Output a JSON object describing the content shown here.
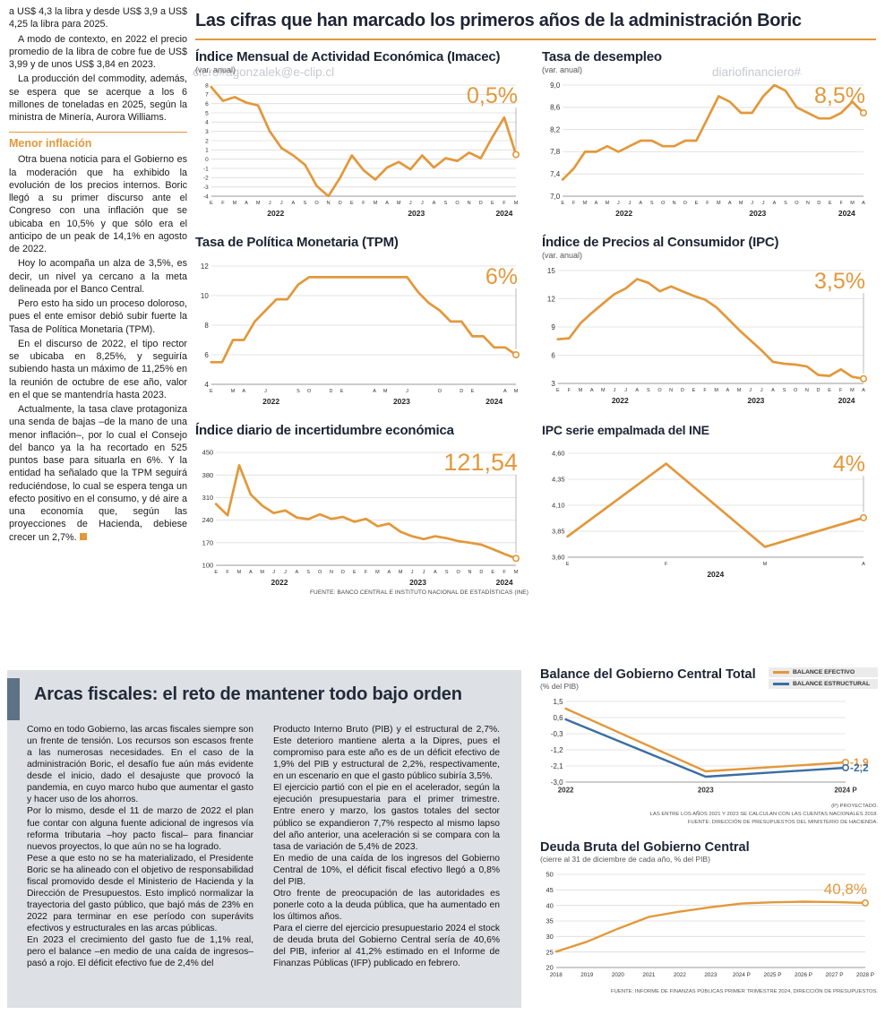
{
  "palette": {
    "orange": "#E2983B",
    "blue": "#3A6EA3",
    "heading": "#1D2433",
    "panel_bg": "#DDE1E5",
    "slate": "#5E7285"
  },
  "watermark": "diariofinanciero#agonzalek@e-clip.cl",
  "main_title": "Las cifras que han marcado los primeros años de la administración Boric",
  "sources": {
    "top": "FUENTE: BANCO CENTRAL E INSTITUTO NACIONAL DE ESTADÍSTICAS (INE)"
  },
  "left_column": {
    "paragraphs": [
      "a US$ 4,3 la libra y desde US$ 3,9 a US$ 4,25 la libra para 2025.",
      "A modo de contexto, en 2022 el precio promedio de la libra de cobre fue de US$ 3,99 y de unos US$ 3,84 en 2023.",
      "La producción del commodity, además, se espera que se acerque a los 6 millones de toneladas en 2025, según la ministra de Minería, Aurora Williams."
    ],
    "subhead": "Menor inflación",
    "inflation_paragraphs": [
      "Otra buena noticia para el Gobierno es la moderación que ha exhibido la evolución de los precios internos. Boric llegó a su primer discurso ante el Congreso con una inflación que se ubicaba en 10,5% y que sólo era el anticipo de un peak de 14,1% en agosto de 2022.",
      "Hoy lo acompaña un alza de 3,5%, es decir, un nivel ya cercano a la meta delineada por el Banco Central.",
      "Pero esto ha sido un proceso doloroso, pues el ente emisor debió subir fuerte la Tasa de Política Monetaria (TPM).",
      "En el discurso de 2022, el tipo rector se ubicaba en 8,25%, y seguiría subiendo hasta un máximo de 11,25% en la reunión de octubre de ese año, valor en el que se mantendría hasta 2023.",
      "Actualmente, la tasa clave protagoniza una senda de bajas –de la mano de una menor inflación–, por lo cual el Consejo del banco ya la ha recortado en 525 puntos base para situarla en 6%. Y la entidad ha señalado que la TPM seguirá reduciéndose, lo cual se espera tenga un efecto positivo en el consumo, y dé aire a una economía que, según las proyecciones de Hacienda, debiese crecer un 2,7%."
    ]
  },
  "bottom_section": {
    "title": "Arcas fiscales: el reto de mantener todo bajo orden",
    "col1": [
      "Como en todo Gobierno, las arcas fiscales siempre son un frente de tensión. Los recursos son escasos frente a las numerosas necesidades. En el caso de la administración Boric, el desafío fue aún más evidente desde el inicio, dado el desajuste que provocó la pandemia, en cuyo marco hubo que aumentar el gasto y hacer uso de los ahorros.",
      "Por lo mismo, desde el 11 de marzo de 2022 el plan fue contar con alguna fuente adicional de ingresos vía reforma tributaria –hoy pacto fiscal– para financiar nuevos proyectos, lo que aún no se ha logrado.",
      "Pese a que esto no se ha materializado, el Presidente Boric se ha alineado con el objetivo de responsabilidad fiscal promovido desde el Ministerio de Hacienda y la Dirección de Presupuestos. Esto implicó normalizar la trayectoria del gasto público, que bajó más de 23% en 2022 para terminar en ese período con superávits efectivos y estructurales en las arcas públicas.",
      "En 2023 el crecimiento del gasto fue de 1,1% real, pero el balance –en medio de una caída de ingresos– pasó a rojo. El déficit efectivo fue de 2,4% del"
    ],
    "col2": [
      "Producto Interno Bruto (PIB) y el estructural de 2,7%. Este deterioro mantiene alerta a la Dipres, pues el compromiso para este año es de un déficit efectivo de 1,9% del PIB y estructural de 2,2%, respectivamente, en un escenario en que el gasto público subiría 3,5%.",
      "El ejercicio partió con el pie en el acelerador, según la ejecución presupuestaria para el primer trimestre. Entre enero y marzo, los gastos totales del sector público se expandieron 7,7% respecto al mismo lapso del año anterior, una aceleración si se compara con la tasa de variación de 5,4% de 2023.",
      "En medio de una caída de los ingresos del Gobierno Central de 10%, el déficit fiscal efectivo llegó a 0,8% del PIB.",
      "Otro frente de preocupación de las autoridades es ponerle coto a la deuda pública, que ha aumentado en los últimos años.",
      "Para el cierre del ejercicio presupuestario 2024 el stock de deuda bruta del Gobierno Central sería de 40,6% del PIB, inferior al 41,2% estimado en el Informe de Finanzas Públicas (IFP) publicado en febrero."
    ]
  },
  "chart_data": [
    {
      "id": "imacec",
      "type": "line",
      "title": "Índice Mensual de Actividad Económica (Imacec)",
      "subtitle": "(var. anual)",
      "callout": "0,5%",
      "ylim": [
        -4,
        8
      ],
      "yticks": [
        "8",
        "7",
        "6",
        "5",
        "4",
        "3",
        "2",
        "1",
        "0",
        "-1",
        "-2",
        "-3",
        "-4"
      ],
      "ytick_size": 6.5,
      "x_labels": [
        "E",
        "F",
        "M",
        "A",
        "M",
        "J",
        "J",
        "A",
        "S",
        "O",
        "N",
        "D",
        "E",
        "F",
        "M",
        "A",
        "M",
        "J",
        "J",
        "A",
        "S",
        "O",
        "N",
        "D",
        "E",
        "F",
        "M"
      ],
      "year_labels": [
        {
          "label": "2022",
          "from": 0,
          "to": 11
        },
        {
          "label": "2023",
          "from": 12,
          "to": 23
        },
        {
          "label": "2024",
          "from": 24,
          "to": 26
        }
      ],
      "values": [
        7.8,
        6.3,
        6.7,
        6.1,
        5.8,
        3.0,
        1.2,
        0.4,
        -0.6,
        -2.9,
        -4.0,
        -2.0,
        0.4,
        -1.2,
        -2.2,
        -0.9,
        -0.3,
        -1.1,
        0.4,
        -0.9,
        0.1,
        -0.2,
        0.7,
        0.1,
        2.4,
        4.5,
        0.5
      ]
    },
    {
      "id": "desempleo",
      "type": "line",
      "title": "Tasa de desempleo",
      "subtitle": "(var. anual)",
      "callout": "8,5%",
      "ylim": [
        7.0,
        9.0
      ],
      "yticks": [
        "9,0",
        "8,6",
        "8,2",
        "7,8",
        "7,4",
        "7,0"
      ],
      "x_labels": [
        "E",
        "F",
        "M",
        "A",
        "M",
        "J",
        "J",
        "A",
        "S",
        "O",
        "N",
        "D",
        "E",
        "F",
        "M",
        "A",
        "M",
        "J",
        "J",
        "A",
        "S",
        "O",
        "N",
        "D",
        "E",
        "F",
        "M",
        "A"
      ],
      "year_labels": [
        {
          "label": "2022",
          "from": 0,
          "to": 11
        },
        {
          "label": "2023",
          "from": 12,
          "to": 23
        },
        {
          "label": "2024",
          "from": 24,
          "to": 27
        }
      ],
      "values": [
        7.3,
        7.5,
        7.8,
        7.8,
        7.9,
        7.8,
        7.9,
        8.0,
        8.0,
        7.9,
        7.9,
        8.0,
        8.0,
        8.4,
        8.8,
        8.7,
        8.5,
        8.5,
        8.8,
        9.0,
        8.9,
        8.6,
        8.5,
        8.4,
        8.4,
        8.5,
        8.7,
        8.5
      ]
    },
    {
      "id": "tpm",
      "type": "line",
      "title": "Tasa de Política Monetaria (TPM)",
      "callout": "6%",
      "ylim": [
        4,
        12
      ],
      "yticks": [
        "12",
        "10",
        "8",
        "6",
        "4"
      ],
      "x_labels": [
        "E",
        "",
        "M",
        "A",
        "",
        "J",
        "",
        "",
        "S",
        "O",
        "",
        "D",
        "E",
        "",
        "",
        "A",
        "M",
        "",
        "J",
        "",
        "",
        "O",
        "",
        "D",
        "E",
        "",
        "",
        "A",
        "M"
      ],
      "year_labels": [
        {
          "label": "2022",
          "from": 0,
          "to": 11
        },
        {
          "label": "2023",
          "from": 12,
          "to": 23
        },
        {
          "label": "2024",
          "from": 24,
          "to": 28
        }
      ],
      "values": [
        5.5,
        5.5,
        7.0,
        7.0,
        8.25,
        9.0,
        9.75,
        9.75,
        10.75,
        11.25,
        11.25,
        11.25,
        11.25,
        11.25,
        11.25,
        11.25,
        11.25,
        11.25,
        11.25,
        10.25,
        9.5,
        9.0,
        8.25,
        8.25,
        7.25,
        7.25,
        6.5,
        6.5,
        6.0
      ]
    },
    {
      "id": "ipc",
      "type": "line",
      "title": "Índice de Precios al Consumidor (IPC)",
      "subtitle": "(var. anual)",
      "callout": "3,5%",
      "ylim": [
        3,
        15
      ],
      "yticks": [
        "15",
        "12",
        "9",
        "6",
        "3"
      ],
      "x_labels": [
        "E",
        "F",
        "M",
        "A",
        "M",
        "J",
        "J",
        "A",
        "S",
        "O",
        "N",
        "D",
        "E",
        "F",
        "M",
        "A",
        "M",
        "J",
        "J",
        "A",
        "S",
        "O",
        "N",
        "D",
        "E",
        "F",
        "M",
        "A"
      ],
      "year_labels": [
        {
          "label": "2022",
          "from": 0,
          "to": 11
        },
        {
          "label": "2023",
          "from": 12,
          "to": 23
        },
        {
          "label": "2024",
          "from": 24,
          "to": 27
        }
      ],
      "values": [
        7.7,
        7.8,
        9.4,
        10.5,
        11.5,
        12.5,
        13.1,
        14.1,
        13.7,
        12.8,
        13.3,
        12.8,
        12.3,
        11.9,
        11.1,
        9.9,
        8.7,
        7.6,
        6.5,
        5.3,
        5.1,
        5.0,
        4.8,
        3.9,
        3.8,
        4.5,
        3.7,
        3.5
      ]
    },
    {
      "id": "incertidumbre",
      "type": "line",
      "title": "Índice diario de incertidumbre económica",
      "callout": "121,54",
      "callout_size": 27,
      "ylim": [
        100,
        450
      ],
      "yticks": [
        "450",
        "380",
        "310",
        "240",
        "170",
        "100"
      ],
      "ytick_size": 7.5,
      "x_labels": [
        "E",
        "F",
        "M",
        "A",
        "M",
        "J",
        "J",
        "A",
        "S",
        "O",
        "N",
        "D",
        "E",
        "F",
        "M",
        "A",
        "M",
        "J",
        "J",
        "A",
        "S",
        "O",
        "N",
        "D",
        "E",
        "F",
        "M"
      ],
      "year_labels": [
        {
          "label": "2022",
          "from": 0,
          "to": 11
        },
        {
          "label": "2023",
          "from": 12,
          "to": 23
        },
        {
          "label": "2024",
          "from": 24,
          "to": 26
        }
      ],
      "values": [
        290,
        255,
        410,
        320,
        285,
        262,
        270,
        248,
        243,
        258,
        244,
        250,
        235,
        244,
        221,
        229,
        204,
        190,
        181,
        190,
        184,
        175,
        170,
        164,
        150,
        135,
        121.54
      ]
    },
    {
      "id": "ipc_ine",
      "type": "line",
      "title": "IPC serie empalmada del INE",
      "callout": "4%",
      "ylim": [
        3.6,
        4.6
      ],
      "yticks": [
        "4,60",
        "4,35",
        "4,10",
        "3,85",
        "3,60"
      ],
      "ytick_size": 7.5,
      "x_labels": [
        "E",
        "F",
        "M",
        "A"
      ],
      "year_labels": [
        {
          "label": "2024",
          "from": 0,
          "to": 3
        }
      ],
      "values": [
        3.8,
        4.5,
        3.7,
        3.98
      ]
    },
    {
      "id": "balance",
      "type": "line",
      "title": "Balance del Gobierno Central Total",
      "subtitle": "(% del PIB)",
      "legend": [
        {
          "label": "BALANCE EFECTIVO",
          "color": "#E2983B"
        },
        {
          "label": "BALANCE ESTRUCTURAL",
          "color": "#3A6EA3"
        }
      ],
      "ylim": [
        -3.0,
        1.5
      ],
      "yticks": [
        "1,5",
        "0,6",
        "-0,3",
        "-1,2",
        "-2,1",
        "-3,0"
      ],
      "x_labels": [
        "2022",
        "2023",
        "2024 P"
      ],
      "xlabel_size": 8,
      "xlabel_weight": "bold",
      "margin_right": 36,
      "stroke": 2.4,
      "series": [
        {
          "name": "BALANCE EFECTIVO",
          "color": "#E2983B",
          "values": [
            1.1,
            -2.4,
            -1.9
          ],
          "end_label": "-1,9"
        },
        {
          "name": "BALANCE ESTRUCTURAL",
          "color": "#3A6EA3",
          "values": [
            0.5,
            -2.7,
            -2.2
          ],
          "end_label": "-2,2"
        }
      ],
      "notes": [
        "(P) PROYECTADO.",
        "LAS ENTRE LOS AÑOS 2021 Y 2023 SE CALCULAN  CON LAS CUENTAS NACIONALES 2018.",
        "FUENTE: DIRECCIÓN DE PRESUPUESTOS DEL MINISTERIO DE HACIENDA."
      ]
    },
    {
      "id": "deuda",
      "type": "line",
      "title": "Deuda Bruta del Gobierno Central",
      "subtitle": "(cierre al 31 de diciembre de cada año, % del PIB)",
      "callout": "40,8%",
      "callout_size": 17,
      "callout_y": 32,
      "connector": false,
      "ylim": [
        20,
        50
      ],
      "yticks": [
        "50",
        "45",
        "40",
        "35",
        "30",
        "25",
        "20"
      ],
      "ytick_size": 7.5,
      "x_labels": [
        "2018",
        "2019",
        "2020",
        "2021",
        "2022",
        "2023",
        "2024 P",
        "2025 P",
        "2026 P",
        "2027 P",
        "2028 P"
      ],
      "xlabel_size": 6.3,
      "stroke": 2.4,
      "values": [
        25.1,
        28.3,
        32.5,
        36.3,
        38.0,
        39.4,
        40.6,
        41.0,
        41.2,
        41.1,
        40.8
      ],
      "source": "FUENTE: INFORME DE FINANZAS PÚBLICAS PRIMER TRIMESTRE 2024, DIRECCIÓN DE PRESUPUESTOS."
    }
  ]
}
